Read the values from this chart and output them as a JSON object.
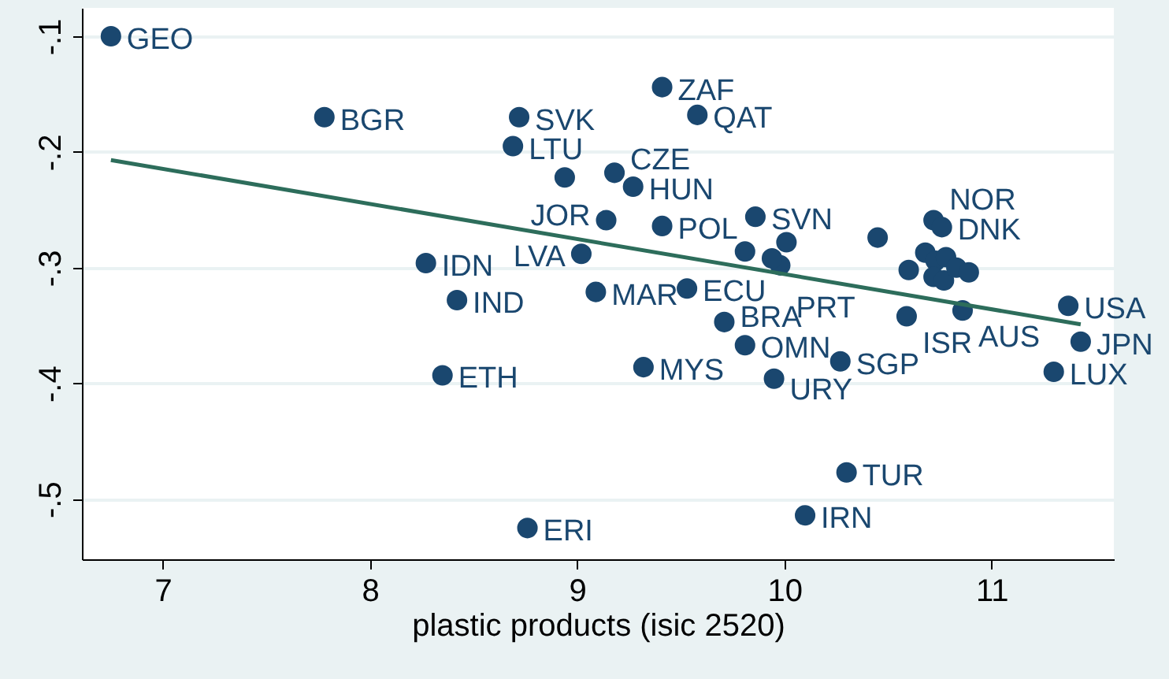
{
  "chart_data": {
    "type": "scatter",
    "xlabel": "plastic products (isic 2520)",
    "xlim": [
      6.61,
      11.59
    ],
    "ylim": [
      -0.552,
      -0.0755
    ],
    "xticks": [
      7,
      8,
      9,
      10,
      11
    ],
    "yticks": [
      {
        "value": -0.5,
        "label": "-.5"
      },
      {
        "value": -0.4,
        "label": "-.4"
      },
      {
        "value": -0.3,
        "label": "-.3"
      },
      {
        "value": -0.2,
        "label": "-.2"
      },
      {
        "value": -0.1,
        "label": "-.1"
      }
    ],
    "grid": "y",
    "series": [
      {
        "color": "#1a476f",
        "marker": "circle",
        "x": [
          6.75,
          7.78,
          8.72,
          8.69,
          8.94,
          9.18,
          9.27,
          9.41,
          9.58,
          9.14,
          9.41,
          9.86,
          9.02,
          8.27,
          8.42,
          9.09,
          9.53,
          9.71,
          9.81,
          9.32,
          9.95,
          10.27,
          8.35,
          8.76,
          10.3,
          10.1,
          10.59,
          10.86,
          11.37,
          11.43,
          11.3,
          10.45,
          10.72,
          10.76,
          10.01,
          9.98,
          9.81,
          9.94,
          10.6,
          10.68,
          10.73,
          10.78,
          10.72,
          10.77,
          10.83,
          10.89
        ],
        "values": [
          -0.1,
          -0.17,
          -0.17,
          -0.195,
          -0.222,
          -0.218,
          -0.23,
          -0.144,
          -0.168,
          -0.259,
          -0.264,
          -0.256,
          -0.288,
          -0.296,
          -0.328,
          -0.321,
          -0.318,
          -0.347,
          -0.367,
          -0.386,
          -0.396,
          -0.381,
          -0.393,
          -0.525,
          -0.477,
          -0.514,
          -0.342,
          -0.337,
          -0.333,
          -0.364,
          -0.39,
          -0.274,
          -0.259,
          -0.265,
          -0.278,
          -0.298,
          -0.286,
          -0.292,
          -0.302,
          -0.287,
          -0.294,
          -0.291,
          -0.308,
          -0.311,
          -0.3,
          -0.304
        ],
        "value_labels": [
          "GEO",
          "BGR",
          "SVK",
          "LTU",
          null,
          "CZE",
          "HUN",
          "ZAF",
          "QAT",
          "JOR",
          "POL",
          "SVN",
          "LVA",
          "IDN",
          "IND",
          "MAR",
          "ECU",
          "BRA",
          "OMN",
          "MYS",
          "URY",
          "SGP",
          "ETH",
          "ERI",
          "TUR",
          "IRN",
          "ISR",
          "AUS",
          "USA",
          "JPN",
          "LUX",
          null,
          "NOR",
          "DNK",
          null,
          "PRT",
          null,
          null,
          null,
          null,
          null,
          null,
          null,
          null,
          null,
          null
        ]
      },
      {
        "type": "line",
        "color": "#2d6d5b",
        "line_style": "solid",
        "x": [
          6.75,
          11.43
        ],
        "values": [
          -0.207,
          -0.349
        ]
      }
    ]
  }
}
